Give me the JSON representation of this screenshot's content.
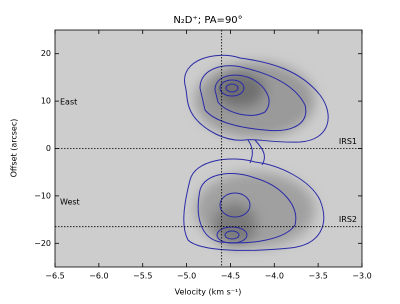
{
  "chart_data": {
    "type": "image",
    "title": "N₂D⁺; PA=90°",
    "x_label": "Velocity (km s⁻¹)",
    "y_label": "Offset (arcsec)",
    "xlim": [
      -6.5,
      -3.0
    ],
    "ylim": [
      -25,
      25
    ],
    "xticks": [
      {
        "value": -6.5,
        "label": "−6.5"
      },
      {
        "value": -6.0,
        "label": "−6.0"
      },
      {
        "value": -5.5,
        "label": "−5.5"
      },
      {
        "value": -5.0,
        "label": "−5.0"
      },
      {
        "value": -4.5,
        "label": "−4.5"
      },
      {
        "value": -4.0,
        "label": "−4.0"
      },
      {
        "value": -3.5,
        "label": "−3.5"
      },
      {
        "value": -3.0,
        "label": "−3.0"
      }
    ],
    "yticks": [
      {
        "value": -20,
        "label": "−20"
      },
      {
        "value": -10,
        "label": "−10"
      },
      0,
      10,
      20
    ],
    "hlines": [
      0,
      -16.5
    ],
    "vline": -4.6,
    "contour_color": "#2a2aa8",
    "annotations": [
      "East",
      "West",
      "IRS1",
      "IRS2"
    ]
  }
}
